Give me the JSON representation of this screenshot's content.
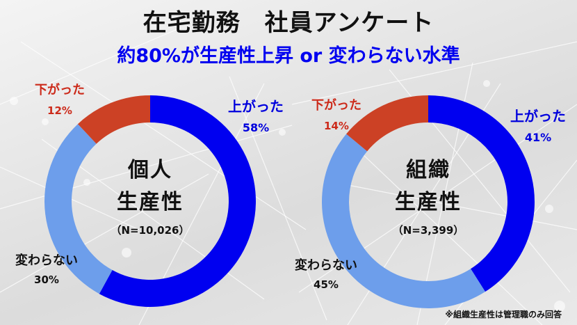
{
  "title": "在宅勤務　社員アンケート",
  "subtitle": "約80%が生産性上昇 or 変わらない水準",
  "colors": {
    "up": "#0000f0",
    "same": "#6d9eeb",
    "down": "#cc4125",
    "subtitle": "#0000f0",
    "down_label": "#cc2a1a",
    "up_label": "#0000dd"
  },
  "footnote": "※組織生産性は管理職のみ回答",
  "chart_data": [
    {
      "type": "pie",
      "variant": "donut",
      "title": "個人 生産性",
      "center_line1": "個人",
      "center_line2": "生産性",
      "sample": "（N=10,026）",
      "categories": [
        "上がった",
        "変わらない",
        "下がった"
      ],
      "values": [
        58,
        30,
        12
      ],
      "unit": "%",
      "start_angle": "12 o'clock, clockwise",
      "labels": {
        "up": {
          "name": "上がった",
          "pct": "58%"
        },
        "same": {
          "name": "変わらない",
          "pct": "30%"
        },
        "down": {
          "name": "下がった",
          "pct": "12%"
        }
      }
    },
    {
      "type": "pie",
      "variant": "donut",
      "title": "組織 生産性",
      "center_line1": "組織",
      "center_line2": "生産性",
      "sample": "（N=3,399）",
      "categories": [
        "上がった",
        "変わらない",
        "下がった"
      ],
      "values": [
        41,
        45,
        14
      ],
      "unit": "%",
      "start_angle": "12 o'clock, clockwise",
      "labels": {
        "up": {
          "name": "上がった",
          "pct": "41%"
        },
        "same": {
          "name": "変わらない",
          "pct": "45%"
        },
        "down": {
          "name": "下がった",
          "pct": "14%"
        }
      }
    }
  ]
}
